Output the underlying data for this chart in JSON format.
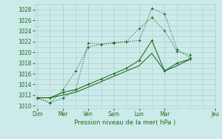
{
  "bg_color": "#cdeaea",
  "grid_color": "#a8cccc",
  "line_color": "#1a6b1a",
  "marker_color": "#1a6b1a",
  "ylabel_ticks": [
    1010,
    1012,
    1014,
    1016,
    1018,
    1020,
    1022,
    1024,
    1026,
    1028
  ],
  "xlabel": "Pression niveau de la mer( hPa )",
  "series": [
    {
      "x": [
        0,
        2,
        4,
        6,
        8,
        10,
        12,
        14,
        16,
        18,
        20,
        22,
        24
      ],
      "y": [
        1011.5,
        1010.5,
        1011.5,
        1013.0,
        1021.7,
        1021.5,
        1021.8,
        1022.0,
        1022.2,
        1028.2,
        1027.2,
        1020.5,
        1019.0
      ],
      "style": "dotted",
      "marker": true
    },
    {
      "x": [
        0,
        2,
        4,
        6,
        8,
        10,
        12,
        14,
        16,
        18,
        20,
        22,
        24
      ],
      "y": [
        1011.5,
        1010.5,
        1013.0,
        1016.5,
        1021.0,
        1021.5,
        1021.7,
        1022.0,
        1024.5,
        1026.5,
        1024.0,
        1020.2,
        1019.5
      ],
      "style": "dotted",
      "marker": true
    },
    {
      "x": [
        0,
        2,
        4,
        6,
        8,
        10,
        12,
        14,
        16,
        18,
        20,
        22,
        24
      ],
      "y": [
        1011.5,
        1011.5,
        1012.5,
        1013.0,
        1014.0,
        1015.0,
        1016.0,
        1017.0,
        1018.5,
        1022.2,
        1016.5,
        1018.0,
        1018.7
      ],
      "style": "solid",
      "marker": true
    },
    {
      "x": [
        0,
        2,
        4,
        6,
        8,
        10,
        12,
        14,
        16,
        18,
        20,
        22,
        24
      ],
      "y": [
        1011.5,
        1011.5,
        1012.0,
        1012.5,
        1013.5,
        1014.5,
        1015.5,
        1016.5,
        1017.5,
        1019.8,
        1016.5,
        1017.5,
        1018.7
      ],
      "style": "solid",
      "marker": false
    }
  ],
  "xtick_positions": [
    0,
    4,
    8,
    12,
    16,
    20,
    28
  ],
  "xtick_labels": [
    "Dim",
    "Mer",
    "Ven",
    "Sam",
    "Lun",
    "Mar",
    "Jeu"
  ],
  "minor_xtick_positions": [
    0,
    2,
    4,
    6,
    8,
    10,
    12,
    14,
    16,
    18,
    20,
    22,
    24,
    26,
    28
  ],
  "ylim": [
    1009.5,
    1029.0
  ],
  "xlim": [
    -0.5,
    28
  ]
}
